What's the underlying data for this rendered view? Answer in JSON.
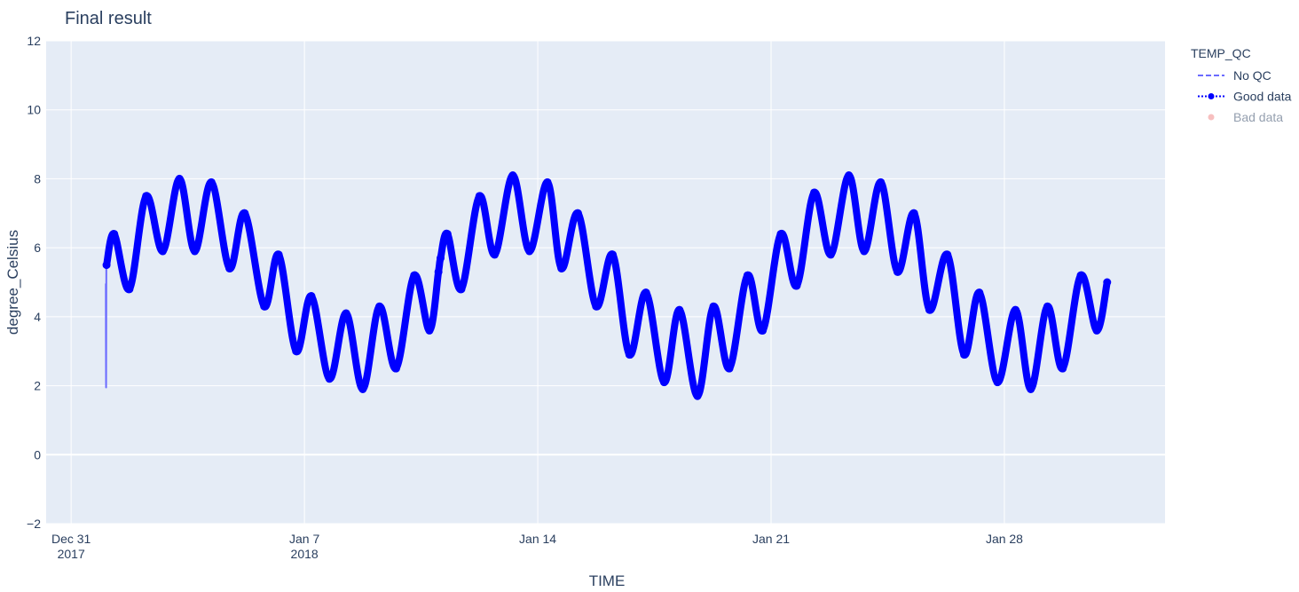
{
  "chart_data": {
    "type": "line",
    "title": "Final result",
    "x_label": "TIME",
    "y_label": "degree_Celsius",
    "legend_title": "TEMP_QC",
    "legend_position": "right",
    "grid": true,
    "xlim": [
      "2017-12-30 06:00",
      "2018-02-01 19:40"
    ],
    "xticks": [
      {
        "value": "2017-12-31",
        "label": [
          "Dec 31",
          "2017"
        ]
      },
      {
        "value": "2018-01-07",
        "label": [
          "Jan 7",
          "2018"
        ]
      },
      {
        "value": "2018-01-14",
        "label": [
          "Jan 14"
        ]
      },
      {
        "value": "2018-01-21",
        "label": [
          "Jan 21"
        ]
      },
      {
        "value": "2018-01-28",
        "label": [
          "Jan 28"
        ]
      }
    ],
    "ylim": [
      -2,
      12
    ],
    "yticks": [
      {
        "value": -2,
        "label": "−2"
      },
      0,
      2,
      4,
      6,
      8,
      10,
      12
    ],
    "series": [
      {
        "name": "No QC",
        "color": "#6b6bff",
        "dash": "dash",
        "markers": false,
        "visible": true,
        "x": [
          "2018-01-01 01:00",
          "2018-01-01 01:10",
          "2018-01-01 01:20",
          "2018-01-01 01:30"
        ],
        "values": [
          4.95,
          1.95,
          5.3,
          5.5
        ]
      },
      {
        "name": "Good data",
        "color": "#0000ff",
        "dash": "dot",
        "markers": true,
        "visible": true,
        "x": [
          "2018-01-01 01:30",
          "2018-01-01 07:00",
          "2018-01-01 18:00",
          "2018-01-02 06:00",
          "2018-01-02 18:00",
          "2018-01-03 06:00",
          "2018-01-03 17:00",
          "2018-01-04 05:00",
          "2018-01-04 18:00",
          "2018-01-05 05:00",
          "2018-01-05 19:00",
          "2018-01-06 05:30",
          "2018-01-06 18:00",
          "2018-01-07 05:00",
          "2018-01-07 18:00",
          "2018-01-08 06:00",
          "2018-01-08 18:00",
          "2018-01-09 06:00",
          "2018-01-09 18:00",
          "2018-01-10 07:00",
          "2018-01-10 18:00",
          "2018-01-11 00:30",
          "2018-01-11 02:00",
          "2018-01-11 07:00",
          "2018-01-11 17:00",
          "2018-01-12 06:00",
          "2018-01-12 17:00",
          "2018-01-13 06:00",
          "2018-01-13 18:00",
          "2018-01-14 07:00",
          "2018-01-14 17:00",
          "2018-01-15 05:00",
          "2018-01-15 18:00",
          "2018-01-16 06:00",
          "2018-01-16 18:00",
          "2018-01-17 06:00",
          "2018-01-17 19:00",
          "2018-01-18 06:00",
          "2018-01-18 19:00",
          "2018-01-19 06:30",
          "2018-01-19 18:00",
          "2018-01-20 07:00",
          "2018-01-20 18:00",
          "2018-01-21 07:00",
          "2018-01-21 18:30",
          "2018-01-22 07:00",
          "2018-01-22 19:00",
          "2018-01-23 08:00",
          "2018-01-23 19:00",
          "2018-01-24 07:00",
          "2018-01-24 19:00",
          "2018-01-25 07:00",
          "2018-01-25 18:00",
          "2018-01-26 07:00",
          "2018-01-26 19:00",
          "2018-01-27 06:00",
          "2018-01-27 19:00",
          "2018-01-28 08:00",
          "2018-01-28 19:00",
          "2018-01-29 07:00",
          "2018-01-29 18:00",
          "2018-01-30 07:00",
          "2018-01-30 18:30",
          "2018-01-31 02:00"
        ],
        "values": [
          5.5,
          6.4,
          4.8,
          7.5,
          5.9,
          8.0,
          5.9,
          7.9,
          5.4,
          7.0,
          4.3,
          5.8,
          3.0,
          4.6,
          2.2,
          4.1,
          1.9,
          4.3,
          2.5,
          5.2,
          3.6,
          5.3,
          5.7,
          6.4,
          4.8,
          7.5,
          5.8,
          8.1,
          5.9,
          7.9,
          5.4,
          7.0,
          4.3,
          5.8,
          2.9,
          4.7,
          2.1,
          4.2,
          1.7,
          4.3,
          2.5,
          5.2,
          3.6,
          6.4,
          4.9,
          7.6,
          5.8,
          8.1,
          5.9,
          7.9,
          5.3,
          7.0,
          4.2,
          5.8,
          2.9,
          4.7,
          2.1,
          4.2,
          1.9,
          4.3,
          2.5,
          5.2,
          3.6,
          5.0
        ]
      },
      {
        "name": "Bad data",
        "color": "#f08080",
        "dash": "none",
        "markers": true,
        "visible": "legendonly",
        "x": [],
        "values": []
      }
    ]
  }
}
